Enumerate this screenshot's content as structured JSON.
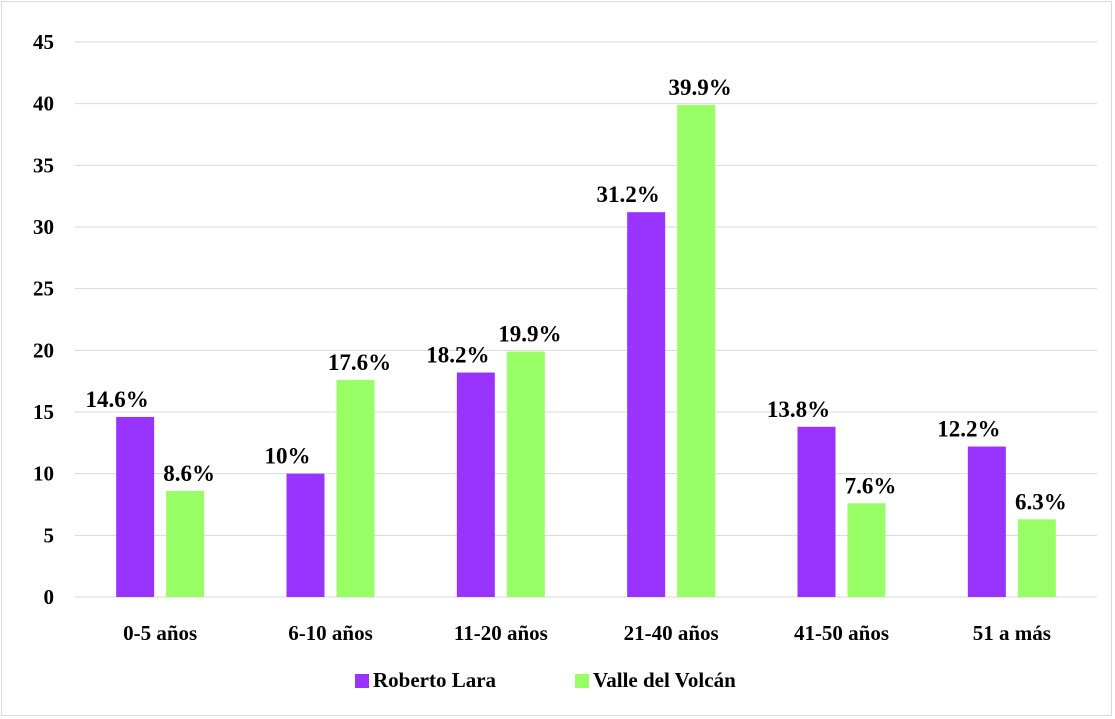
{
  "chart_data": {
    "type": "bar",
    "categories": [
      "0-5 años",
      "6-10 años",
      "11-20 años",
      "21-40 años",
      "41-50 años",
      "51 a más"
    ],
    "series": [
      {
        "name": "Roberto Lara",
        "color": "#9933ff",
        "values": [
          14.6,
          10,
          18.2,
          31.2,
          13.8,
          12.2
        ],
        "labels": [
          "14.6%",
          "10%",
          "18.2%",
          "31.2%",
          "13.8%",
          "12.2%"
        ]
      },
      {
        "name": "Valle del Volcán",
        "color": "#99ff66",
        "values": [
          8.6,
          17.6,
          19.9,
          39.9,
          7.6,
          6.3
        ],
        "labels": [
          "8.6%",
          "17.6%",
          "19.9%",
          "39.9%",
          "7.6%",
          "6.3%"
        ]
      }
    ],
    "ylim": [
      0,
      45
    ],
    "yticks": [
      "0",
      "5",
      "10",
      "15",
      "20",
      "25",
      "30",
      "35",
      "40",
      "45"
    ],
    "grid": true,
    "legend": "bottom"
  }
}
